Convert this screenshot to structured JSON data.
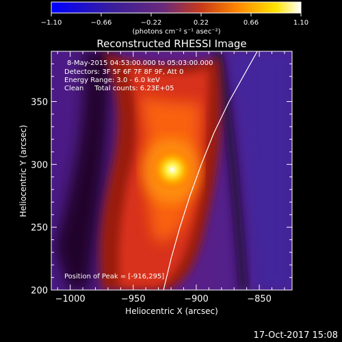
{
  "colorbar": {
    "ticks": [
      "-1.10",
      "-0.66",
      "-0.22",
      "0.22",
      "0.66",
      "1.10"
    ],
    "unit_label": "(photons cm⁻² s⁻¹ asec⁻²)",
    "colors": [
      "#0000ff",
      "#3a1f9a",
      "#6a2a7a",
      "#c83a1a",
      "#ff8a00",
      "#ffe400",
      "#ffffff"
    ]
  },
  "annotations": {
    "time": "8-May-2015 04:53:00.000 to 05:03:00.000",
    "detectors": "Detectors: 3F 5F 6F 7F 8F 9F, Att 0",
    "energy": "Energy Range: 3.0 - 6.0 keV",
    "clean": "Clean     Total counts: 6.23E+05",
    "peak": "Position of Peak = [-916,295]"
  },
  "footer": {
    "timestamp": "17-Oct-2017 15:08"
  },
  "chart_data": {
    "type": "heatmap",
    "title": "Reconstructed RHESSI Image",
    "xlabel": "Heliocentric X (arcsec)",
    "ylabel": "Heliocentric Y (arcsec)",
    "xlim": [
      -1015,
      -824
    ],
    "ylim": [
      200,
      390
    ],
    "xticks": [
      -1000,
      -950,
      -900,
      -850
    ],
    "yticks": [
      200,
      250,
      300,
      350
    ],
    "xtick_labels": [
      "−1000",
      "−950",
      "−900",
      "−850"
    ],
    "ytick_labels": [
      "200",
      "250",
      "300",
      "350"
    ],
    "peak": {
      "x": -916,
      "y": 295
    },
    "limb_curve": {
      "x": [
        -926,
        -920,
        -913,
        -905,
        -896,
        -886,
        -874,
        -860,
        -846
      ],
      "y": [
        200,
        225,
        250,
        275,
        300,
        325,
        350,
        375,
        400
      ]
    },
    "colorbar_range": [
      -1.1,
      1.1
    ]
  }
}
